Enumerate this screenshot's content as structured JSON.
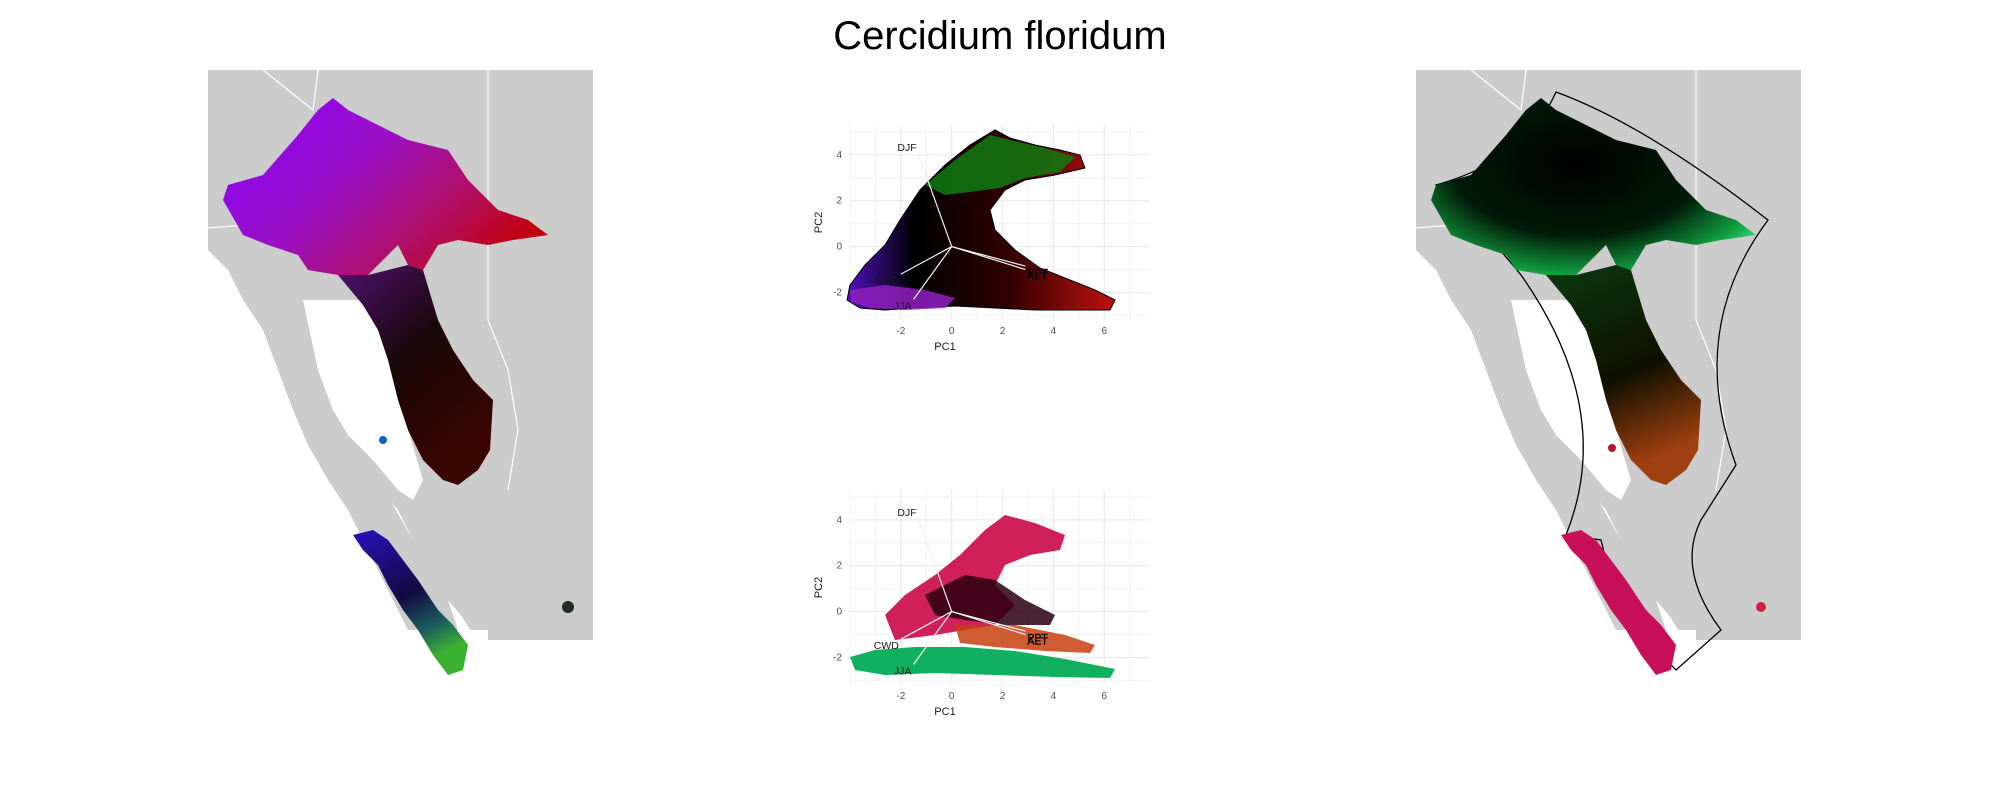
{
  "title": "Cercidium floridum",
  "colors": {
    "land": "#cccccc",
    "border": "#ffffff",
    "background": "#ffffff"
  },
  "maps": [
    {
      "name": "left-map",
      "coloring": "climate-rgb"
    },
    {
      "name": "right-map",
      "coloring": "novelty-rgb"
    }
  ],
  "chart_data": [
    {
      "type": "scatter",
      "name": "pca-top",
      "xlabel": "PC1",
      "ylabel": "PC2",
      "xlim": [
        -4,
        7.8
      ],
      "ylim": [
        -3.2,
        5.3
      ],
      "xticks": [
        -2,
        0,
        2,
        4,
        6
      ],
      "yticks": [
        -2,
        0,
        2,
        4
      ],
      "grid": true,
      "vectors": [
        {
          "label": "DJF",
          "x": -1.3,
          "y": 4.0
        },
        {
          "label": "CWD",
          "x": -2.0,
          "y": -1.2
        },
        {
          "label": "JJA",
          "x": -1.5,
          "y": -2.3
        },
        {
          "label": "AET",
          "x": 2.9,
          "y": -1.0
        },
        {
          "label": "PPT",
          "x": 2.9,
          "y": -0.85
        }
      ]
    },
    {
      "type": "scatter",
      "name": "pca-bottom",
      "xlabel": "PC1",
      "ylabel": "PC2",
      "xlim": [
        -4,
        7.8
      ],
      "ylim": [
        -3.2,
        5.3
      ],
      "xticks": [
        -2,
        0,
        2,
        4,
        6
      ],
      "yticks": [
        -2,
        0,
        2,
        4
      ],
      "grid": true,
      "vectors": [
        {
          "label": "DJF",
          "x": -1.3,
          "y": 4.0
        },
        {
          "label": "CWD",
          "x": -2.0,
          "y": -1.2
        },
        {
          "label": "JJA",
          "x": -1.5,
          "y": -2.3
        },
        {
          "label": "AET",
          "x": 2.9,
          "y": -1.0
        },
        {
          "label": "PPT",
          "x": 2.9,
          "y": -0.85
        }
      ]
    }
  ]
}
